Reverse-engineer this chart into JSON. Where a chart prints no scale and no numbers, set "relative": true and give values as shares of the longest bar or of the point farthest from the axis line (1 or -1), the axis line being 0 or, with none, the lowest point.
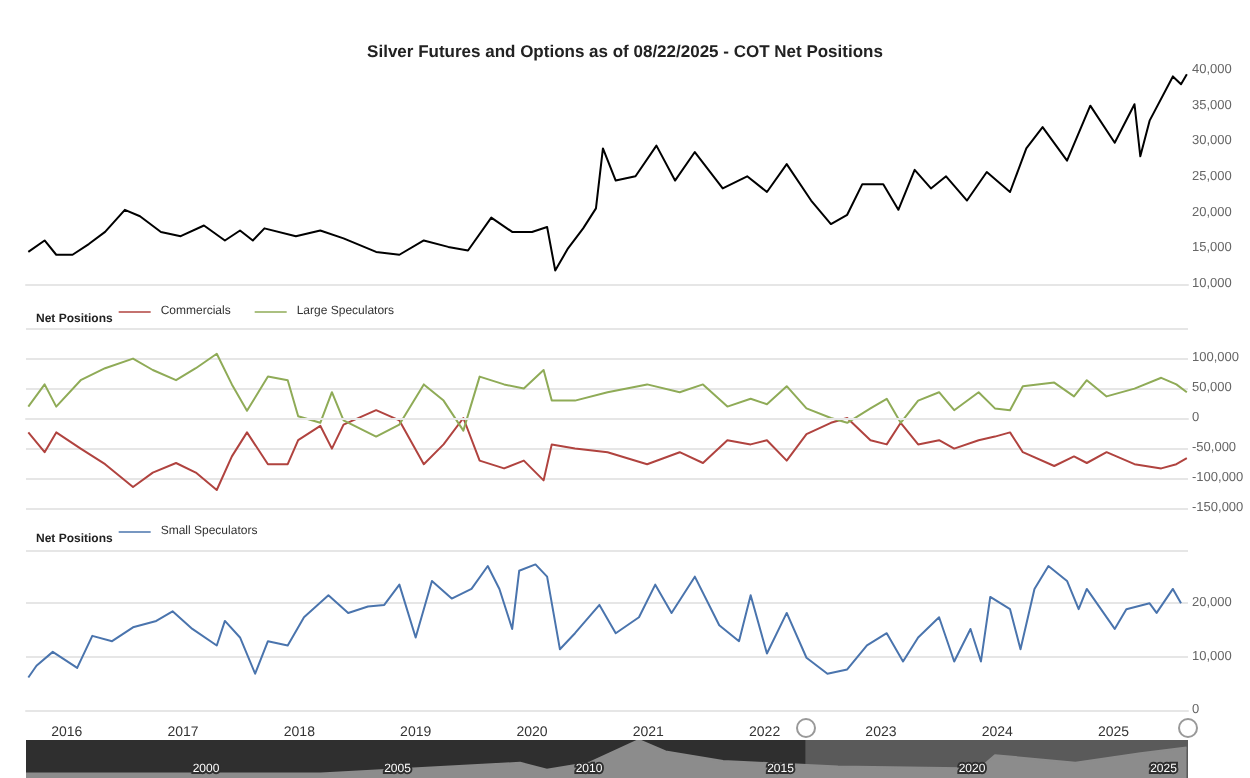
{
  "chart_data": [
    {
      "type": "line",
      "title": "Silver Futures and Options as of 08/22/2025 - COT Net Positions",
      "marker": "none",
      "tick_labels": "y",
      "xlim": [
        2015.65,
        2025.64
      ],
      "xticks": [
        2016,
        2017,
        2018,
        2019,
        2020,
        2021,
        2022,
        2023,
        2024,
        2025
      ],
      "ylim": [
        10000,
        40000
      ],
      "yticks": [
        {
          "value": 10000,
          "label": "10,000"
        },
        {
          "value": 15000,
          "label": "15,000"
        },
        {
          "value": 20000,
          "label": "20,000"
        },
        {
          "value": 25000,
          "label": "25,000"
        },
        {
          "value": 30000,
          "label": "30,000"
        },
        {
          "value": 35000,
          "label": "35,000"
        },
        {
          "value": 40000,
          "label": "40,000"
        }
      ],
      "series": [
        {
          "color": "#000000",
          "x": [
            2015.67,
            2015.81,
            2015.91,
            2016.05,
            2016.19,
            2016.33,
            2016.5,
            2016.63,
            2016.81,
            2016.98,
            2017.18,
            2017.36,
            2017.49,
            2017.6,
            2017.7,
            2017.97,
            2018.18,
            2018.38,
            2018.66,
            2018.86,
            2019.07,
            2019.28,
            2019.45,
            2019.65,
            2019.83,
            2020.0,
            2020.13,
            2020.2,
            2020.31,
            2020.44,
            2020.55,
            2020.61,
            2020.72,
            2020.89,
            2021.07,
            2021.23,
            2021.4,
            2021.64,
            2021.85,
            2022.02,
            2022.19,
            2022.4,
            2022.57,
            2022.71,
            2022.84,
            2023.02,
            2023.15,
            2023.29,
            2023.43,
            2023.56,
            2023.74,
            2023.91,
            2024.11,
            2024.25,
            2024.39,
            2024.6,
            2024.8,
            2025.01,
            2025.18,
            2025.23,
            2025.31,
            2025.51,
            2025.58,
            2025.63
          ],
          "values": [
            14500,
            16100,
            14100,
            14100,
            15600,
            17300,
            20400,
            19500,
            17300,
            16700,
            18200,
            16100,
            17500,
            16100,
            17800,
            16700,
            17500,
            16400,
            14500,
            14100,
            16100,
            15200,
            14700,
            19300,
            17300,
            17300,
            18000,
            11900,
            15000,
            17800,
            20600,
            29000,
            24500,
            25100,
            29400,
            24500,
            28500,
            23400,
            25100,
            22900,
            26800,
            21700,
            18400,
            19700,
            24000,
            24000,
            20400,
            26000,
            23400,
            25100,
            21700,
            25700,
            22900,
            29000,
            32000,
            27300,
            35000,
            29800,
            35200,
            27900,
            32900,
            39100,
            38000,
            39400
          ]
        }
      ]
    },
    {
      "type": "line",
      "legend_title": "Net Positions",
      "legend": "top left",
      "grid": "y",
      "marker": "none",
      "tick_labels": "y",
      "xlim": [
        2015.65,
        2025.64
      ],
      "xticks": [
        2016,
        2017,
        2018,
        2019,
        2020,
        2021,
        2022,
        2023,
        2024,
        2025
      ],
      "ylim": [
        -150000,
        150000
      ],
      "yticks": [
        {
          "value": -150000,
          "label": "-150,000"
        },
        {
          "value": -100000,
          "label": "-100,000"
        },
        {
          "value": -50000,
          "label": "-50,000"
        },
        0,
        {
          "value": 50000,
          "label": "50,000"
        },
        {
          "value": 100000,
          "label": "100,000"
        },
        {
          "value": 150000,
          "label": null
        }
      ],
      "x": [
        2015.67,
        2015.81,
        2015.91,
        2016.12,
        2016.33,
        2016.57,
        2016.74,
        2016.94,
        2017.11,
        2017.29,
        2017.42,
        2017.55,
        2017.73,
        2017.9,
        2017.99,
        2018.18,
        2018.28,
        2018.38,
        2018.66,
        2018.86,
        2019.07,
        2019.24,
        2019.41,
        2019.55,
        2019.76,
        2019.93,
        2020.1,
        2020.17,
        2020.37,
        2020.65,
        2020.99,
        2021.27,
        2021.47,
        2021.68,
        2021.88,
        2022.02,
        2022.19,
        2022.36,
        2022.57,
        2022.71,
        2022.91,
        2023.05,
        2023.17,
        2023.32,
        2023.5,
        2023.63,
        2023.84,
        2023.98,
        2024.11,
        2024.22,
        2024.49,
        2024.66,
        2024.77,
        2024.94,
        2025.18,
        2025.41,
        2025.54,
        2025.63
      ],
      "series": [
        {
          "name": "Commercials",
          "color": "#b0433f",
          "values": [
            -24000,
            -57000,
            -24000,
            -51000,
            -77000,
            -115000,
            -91000,
            -75000,
            -91000,
            -120000,
            -64000,
            -24000,
            -77000,
            -77000,
            -37000,
            -13000,
            -51000,
            -11000,
            13000,
            -4000,
            -77000,
            -44000,
            0,
            -71000,
            -84000,
            -71000,
            -104000,
            -44000,
            -51000,
            -57000,
            -77000,
            -57000,
            -75000,
            -37000,
            -44000,
            -37000,
            -71000,
            -27000,
            -8000,
            0,
            -37000,
            -44000,
            -8000,
            -44000,
            -37000,
            -51000,
            -37000,
            -31000,
            -24000,
            -57000,
            -80000,
            -64000,
            -75000,
            -57000,
            -77000,
            -84000,
            -77000,
            -67000
          ]
        },
        {
          "name": "Large Speculators",
          "color": "#8fab57",
          "values": [
            19000,
            56000,
            19000,
            63000,
            83000,
            99000,
            80000,
            63000,
            83000,
            107000,
            56000,
            12000,
            69000,
            63000,
            3000,
            -8000,
            43000,
            -4000,
            -31000,
            -11000,
            56000,
            29000,
            -21000,
            69000,
            56000,
            49000,
            80000,
            29000,
            29000,
            43000,
            56000,
            43000,
            56000,
            19000,
            32000,
            23000,
            53000,
            16000,
            0,
            -8000,
            16000,
            32000,
            -8000,
            29000,
            43000,
            13000,
            43000,
            16000,
            13000,
            53000,
            59000,
            36000,
            63000,
            36000,
            49000,
            67000,
            56000,
            43000
          ]
        }
      ]
    },
    {
      "type": "line",
      "legend_title": "Net Positions",
      "legend": "top left",
      "grid": "y",
      "marker": "none",
      "xlim": [
        2015.65,
        2025.64
      ],
      "xticks": [
        2016,
        2017,
        2018,
        2019,
        2020,
        2021,
        2022,
        2023,
        2024,
        2025
      ],
      "ylim": [
        0,
        30000
      ],
      "yticks": [
        0,
        {
          "value": 10000,
          "label": "10,000"
        },
        {
          "value": 20000,
          "label": "20,000"
        },
        {
          "value": 30000,
          "label": null
        }
      ],
      "series": [
        {
          "name": "Small Speculators",
          "color": "#4a74ad",
          "x": [
            2015.67,
            2015.74,
            2015.88,
            2016.09,
            2016.22,
            2016.39,
            2016.57,
            2016.77,
            2016.91,
            2017.08,
            2017.29,
            2017.36,
            2017.49,
            2017.62,
            2017.73,
            2017.9,
            2018.04,
            2018.25,
            2018.42,
            2018.59,
            2018.73,
            2018.86,
            2019.0,
            2019.14,
            2019.31,
            2019.48,
            2019.62,
            2019.72,
            2019.83,
            2019.89,
            2020.03,
            2020.13,
            2020.24,
            2020.37,
            2020.58,
            2020.72,
            2020.92,
            2021.06,
            2021.2,
            2021.4,
            2021.61,
            2021.78,
            2021.88,
            2022.02,
            2022.19,
            2022.36,
            2022.54,
            2022.71,
            2022.88,
            2023.05,
            2023.19,
            2023.32,
            2023.5,
            2023.63,
            2023.77,
            2023.86,
            2023.94,
            2024.11,
            2024.2,
            2024.32,
            2024.44,
            2024.6,
            2024.7,
            2024.77,
            2025.01,
            2025.11,
            2025.31,
            2025.37,
            2025.51,
            2025.58
          ],
          "values": [
            6100,
            8300,
            10900,
            7900,
            13900,
            12900,
            15500,
            16700,
            18500,
            15200,
            12100,
            16700,
            13600,
            6800,
            12900,
            12100,
            17400,
            21500,
            18200,
            19400,
            19700,
            23500,
            13600,
            24200,
            20900,
            22700,
            27000,
            22700,
            15200,
            26100,
            27300,
            25000,
            11400,
            14400,
            19700,
            14400,
            17400,
            23500,
            18200,
            25000,
            15900,
            12900,
            21500,
            10600,
            18200,
            9800,
            6800,
            7600,
            12100,
            14400,
            9100,
            13600,
            17400,
            9100,
            15200,
            9100,
            21200,
            18900,
            11400,
            22700,
            27000,
            24200,
            18900,
            22700,
            15200,
            18900,
            20000,
            18200,
            22700,
            20000
          ]
        }
      ]
    },
    {
      "type": "area",
      "relative": true,
      "tick_labels": "x",
      "marker": "none",
      "xlim": [
        1995.3,
        2025.64
      ],
      "xticks": [
        2000,
        2005,
        2010,
        2015,
        2020,
        2025
      ],
      "bands": [
        {
          "axis": "x",
          "from": 2015.65,
          "to": 2025.64,
          "color": "#5a5a5a"
        }
      ],
      "series": [
        {
          "color": "#8c8c8c",
          "x": [
            1995.3,
            2000,
            2003,
            2006,
            2008.2,
            2008.9,
            2010,
            2011.3,
            2012,
            2013.5,
            2016.5,
            2020.2,
            2020.6,
            2022.7,
            2024.4,
            2025.6
          ],
          "values": [
            0.12,
            0.12,
            0.12,
            0.28,
            0.4,
            0.22,
            0.4,
            1,
            0.7,
            0.45,
            0.3,
            0.25,
            0.6,
            0.4,
            0.65,
            0.8
          ]
        }
      ]
    }
  ]
}
